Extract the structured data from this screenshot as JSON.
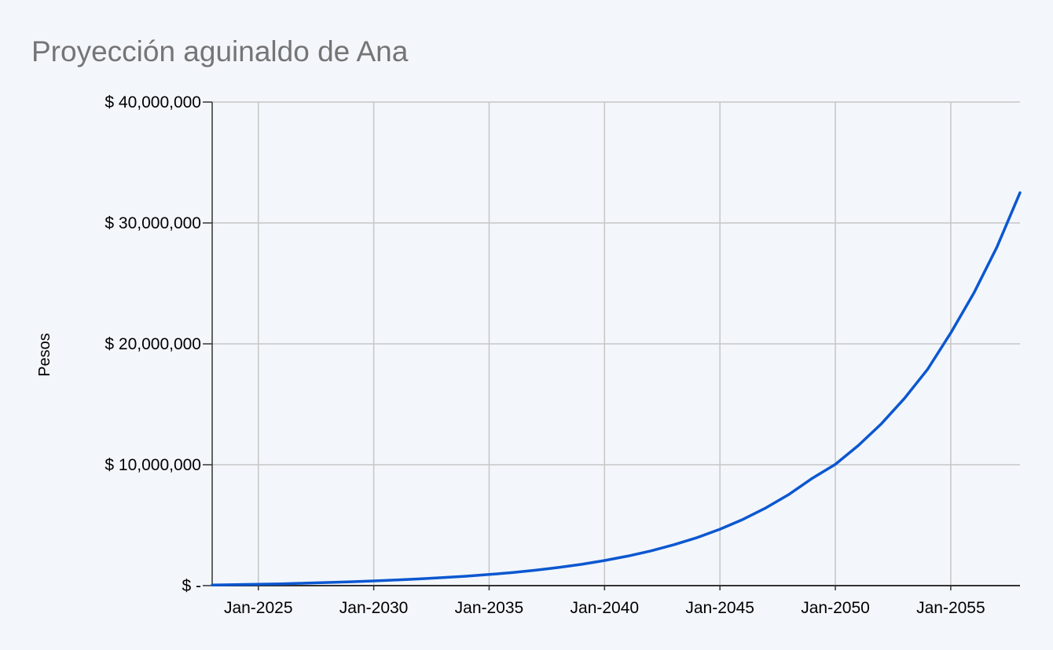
{
  "chart_data": {
    "type": "line",
    "title": "Proyección aguinaldo de Ana",
    "xlabel": "",
    "ylabel": "Pesos",
    "x_ticks": [
      "Jan-2025",
      "Jan-2030",
      "Jan-2035",
      "Jan-2040",
      "Jan-2045",
      "Jan-2050",
      "Jan-2055"
    ],
    "y_ticks": [
      "$ -",
      "$ 10,000,000",
      "$ 20,000,000",
      "$ 30,000,000",
      "$ 40,000,000"
    ],
    "ylim": [
      0,
      40000000
    ],
    "xlim": [
      "Jan-2023",
      "Jan-2058"
    ],
    "grid": true,
    "line_color": "#0b57d0",
    "series": [
      {
        "x": [
          "Jan-2023",
          "Jan-2024",
          "Jan-2025",
          "Jan-2026",
          "Jan-2027",
          "Jan-2028",
          "Jan-2029",
          "Jan-2030",
          "Jan-2031",
          "Jan-2032",
          "Jan-2033",
          "Jan-2034",
          "Jan-2035",
          "Jan-2036",
          "Jan-2037",
          "Jan-2038",
          "Jan-2039",
          "Jan-2040",
          "Jan-2041",
          "Jan-2042",
          "Jan-2043",
          "Jan-2044",
          "Jan-2045",
          "Jan-2046",
          "Jan-2047",
          "Jan-2048",
          "Jan-2049",
          "Jan-2050",
          "Jan-2051",
          "Jan-2052",
          "Jan-2053",
          "Jan-2054",
          "Jan-2055",
          "Jan-2056",
          "Jan-2057",
          "Jan-2058"
        ],
        "values": [
          50000,
          75000,
          110000,
          150000,
          200000,
          260000,
          320000,
          390000,
          470000,
          560000,
          660000,
          780000,
          920000,
          1080000,
          1270000,
          1500000,
          1760000,
          2080000,
          2440000,
          2870000,
          3380000,
          3970000,
          4670000,
          5480000,
          6440000,
          7560000,
          8880000,
          10030000,
          11600000,
          13400000,
          15500000,
          17900000,
          20900000,
          24200000,
          28000000,
          32500000
        ]
      }
    ]
  }
}
